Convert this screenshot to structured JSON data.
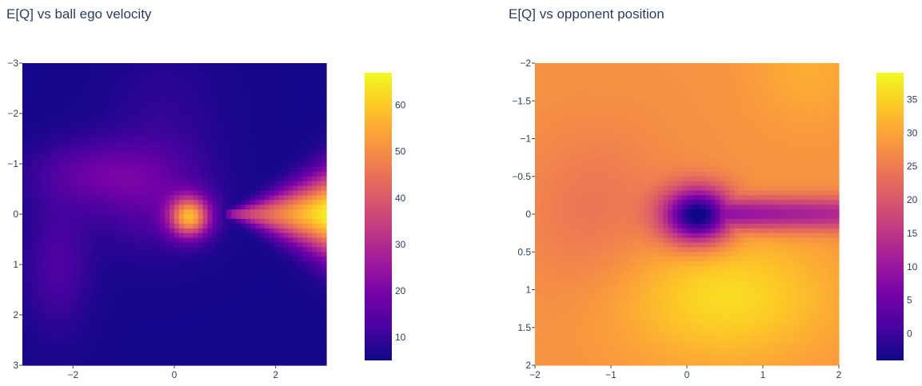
{
  "chart_data": [
    {
      "type": "heatmap",
      "title": "E[Q] vs ball ego velocity",
      "xlabel": "",
      "ylabel": "",
      "xlim": [
        -3,
        3
      ],
      "ylim": [
        -3,
        3
      ],
      "y_reversed": true,
      "xticks": [
        -2,
        0,
        2
      ],
      "xtick_labels": [
        "−2",
        "0",
        "2"
      ],
      "yticks": [
        -3,
        -2,
        -1,
        0,
        1,
        2,
        3
      ],
      "ytick_labels": [
        "−3",
        "−2",
        "−1",
        "0",
        "1",
        "2",
        "3"
      ],
      "colorbar": {
        "range": [
          5,
          67
        ],
        "ticks": [
          10,
          20,
          30,
          40,
          50,
          60
        ],
        "tick_labels": [
          "10",
          "20",
          "30",
          "40",
          "50",
          "60"
        ]
      },
      "colorscale": [
        "#0d0887",
        "#46039f",
        "#7201a8",
        "#9c179e",
        "#bd3786",
        "#d8576b",
        "#ed7953",
        "#fb9f3a",
        "#fdca26",
        "#f0f921"
      ],
      "grid": false
    },
    {
      "type": "heatmap",
      "title": "E[Q] vs opponent position",
      "xlabel": "",
      "ylabel": "",
      "xlim": [
        -2,
        2
      ],
      "ylim": [
        -2,
        2
      ],
      "y_reversed": true,
      "xticks": [
        -2,
        -1,
        0,
        1,
        2
      ],
      "xtick_labels": [
        "−2",
        "−1",
        "0",
        "1",
        "2"
      ],
      "yticks": [
        -2,
        -1.5,
        -1,
        -0.5,
        0,
        0.5,
        1,
        1.5,
        2
      ],
      "ytick_labels": [
        "−2",
        "−1.5",
        "−1",
        "−0.5",
        "0",
        "0.5",
        "1",
        "1.5",
        "2"
      ],
      "colorbar": {
        "range": [
          -4,
          39
        ],
        "ticks": [
          0,
          5,
          10,
          15,
          20,
          25,
          30,
          35
        ],
        "tick_labels": [
          "0",
          "5",
          "10",
          "15",
          "20",
          "25",
          "30",
          "35"
        ]
      },
      "colorscale": [
        "#0d0887",
        "#46039f",
        "#7201a8",
        "#9c179e",
        "#bd3786",
        "#d8576b",
        "#ed7953",
        "#fb9f3a",
        "#fdca26",
        "#f0f921"
      ],
      "grid": false
    }
  ]
}
